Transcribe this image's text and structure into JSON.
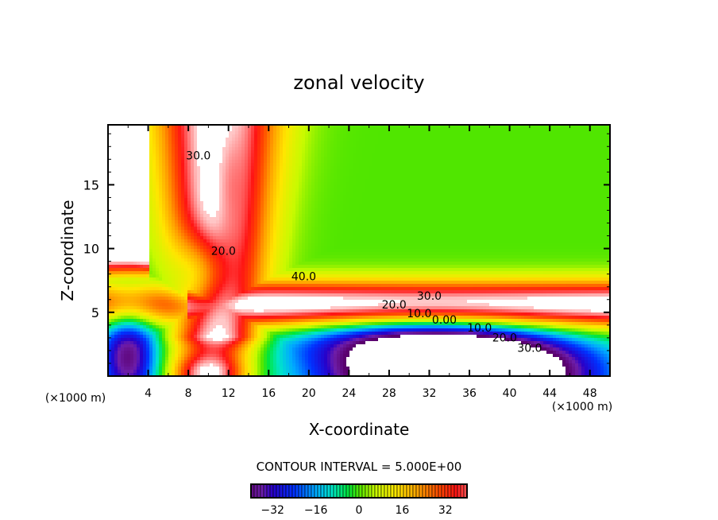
{
  "chart_data": {
    "type": "heatmap",
    "subtype": "filled-contour",
    "title": "zonal velocity",
    "xlabel": "X-coordinate",
    "ylabel": "Z-coordinate",
    "x_unit_label": "(×1000 m)",
    "x_unit_label_right": "(×1000 m)",
    "xlim": [
      0,
      50
    ],
    "ylim": [
      0,
      19.7
    ],
    "xticks": [
      4,
      8,
      12,
      16,
      20,
      24,
      28,
      32,
      36,
      40,
      44,
      48
    ],
    "yticks": [
      5,
      10,
      15
    ],
    "contour_interval_text": "CONTOUR INTERVAL = 5.000E+00",
    "contour_interval": 5,
    "contour_labels": [
      {
        "text": "30.0",
        "x": 9,
        "z": 17
      },
      {
        "text": "20.0",
        "x": 11.5,
        "z": 9.5
      },
      {
        "text": "40.0",
        "x": 19.5,
        "z": 7.5
      },
      {
        "text": "30.0",
        "x": 32,
        "z": 6.0
      },
      {
        "text": "20.0",
        "x": 28.5,
        "z": 5.3
      },
      {
        "text": "10.0",
        "x": 31,
        "z": 4.6
      },
      {
        "text": "0.00",
        "x": 33.5,
        "z": 4.1
      },
      {
        "text": "10.0",
        "x": 37,
        "z": 3.5
      },
      {
        "text": "20.0",
        "x": 39.5,
        "z": 2.7
      },
      {
        "text": "30.0",
        "x": 42,
        "z": 1.9
      }
    ],
    "colorbar": {
      "range": [
        -40,
        40
      ],
      "tick_labels": [
        "−32",
        "−16",
        "0",
        "16",
        "32"
      ],
      "tick_values": [
        -32,
        -16,
        0,
        16,
        32
      ]
    },
    "colors": {
      "white_high": "#ffffff",
      "pink": "#ff9a9a",
      "red": "#ff1010",
      "orange": "#ff8c00",
      "yellow": "#ffe600",
      "green": "#22e000",
      "cyan": "#00e0e0",
      "blue": "#0030ff",
      "navy": "#0000a0",
      "purple": "#7a1fa0"
    }
  }
}
